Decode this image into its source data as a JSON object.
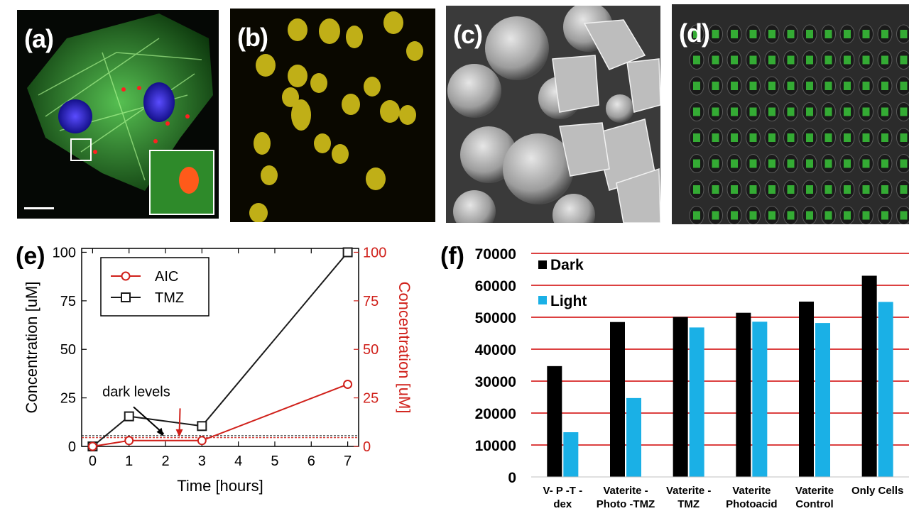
{
  "panels": {
    "a": {
      "letter": "(a)"
    },
    "b": {
      "letter": "(b)"
    },
    "c": {
      "letter": "(c)"
    },
    "d": {
      "letter": "(d)"
    },
    "e": {
      "letter": "(e)"
    },
    "f": {
      "letter": "(f)"
    }
  },
  "colors": {
    "aic": "#d0201a",
    "tmz": "#1a1a1a",
    "dark": "#000000",
    "light": "#1ab0e6",
    "grid_f": "#d00000"
  },
  "chart_data": [
    {
      "id": "e",
      "type": "line",
      "x_ticks": [
        "0",
        "1",
        "2",
        "3",
        "4",
        "5",
        "6",
        "7"
      ],
      "xlim": [
        -0.3,
        7.3
      ],
      "ylim": [
        0,
        102
      ],
      "xlabel": "Time [hours]",
      "ylabel": "Concentration [uM]",
      "ylabel_right": "Concentration [uM]",
      "y_ticks": [
        "0",
        "25",
        "50",
        "75",
        "100"
      ],
      "y_ticks_right": [
        "0",
        "25",
        "50",
        "75",
        "100"
      ],
      "series": [
        {
          "name": "AIC",
          "marker": "circle",
          "x": [
            0,
            1,
            3,
            7
          ],
          "y": [
            0,
            3,
            3,
            32
          ]
        },
        {
          "name": "TMZ",
          "marker": "square",
          "x": [
            0,
            1,
            3,
            7
          ],
          "y": [
            0,
            15.5,
            10.5,
            100
          ]
        }
      ],
      "dark_levels": [
        4.5,
        5.5
      ],
      "annotation": "dark levels",
      "legend_position": "top-left"
    },
    {
      "id": "f",
      "type": "bar",
      "categories": [
        [
          "V- P -T -",
          "dex"
        ],
        [
          "Vaterite -",
          "Photo -TMZ"
        ],
        [
          "Vaterite -",
          "TMZ"
        ],
        [
          "Vaterite",
          "Photoacid"
        ],
        [
          "Vaterite",
          "Control"
        ],
        [
          "Only Cells",
          ""
        ]
      ],
      "series": [
        {
          "name": "Dark",
          "values": [
            34700,
            48500,
            50100,
            51400,
            54900,
            63000
          ]
        },
        {
          "name": "Light",
          "values": [
            14000,
            24700,
            46800,
            48600,
            48200,
            54800
          ]
        }
      ],
      "ylim": [
        0,
        70000
      ],
      "y_ticks": [
        "0",
        "10000",
        "20000",
        "30000",
        "40000",
        "50000",
        "60000",
        "70000"
      ],
      "grid": true,
      "legend_position": "top-left"
    }
  ]
}
